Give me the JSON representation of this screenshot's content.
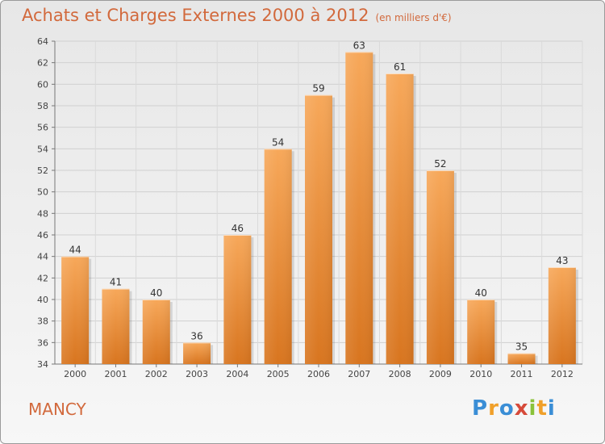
{
  "header": {
    "title": "Achats et Charges Externes 2000 à 2012",
    "subtitle": "(en milliers d'€)"
  },
  "footer": {
    "place": "MANCY",
    "brand": "Proxiti"
  },
  "colors": {
    "bar_light": "#f7a85a",
    "bar_dark": "#d8751f",
    "title": "#d2693c",
    "brand_letters": [
      "#3a8ed6",
      "#f0a02a",
      "#3a8ed6",
      "#d64a3a",
      "#8ac23a",
      "#f0a02a",
      "#3a8ed6"
    ]
  },
  "chart_data": {
    "type": "bar",
    "categories": [
      "2000",
      "2001",
      "2002",
      "2003",
      "2004",
      "2005",
      "2006",
      "2007",
      "2008",
      "2009",
      "2010",
      "2011",
      "2012"
    ],
    "values": [
      44,
      41,
      40,
      36,
      46,
      54,
      59,
      63,
      61,
      52,
      40,
      35,
      43
    ],
    "ylim": [
      34,
      64
    ],
    "yticks": [
      34,
      36,
      38,
      40,
      42,
      44,
      46,
      48,
      50,
      52,
      54,
      56,
      58,
      60,
      62,
      64
    ],
    "grid": true,
    "data_labels": true
  }
}
